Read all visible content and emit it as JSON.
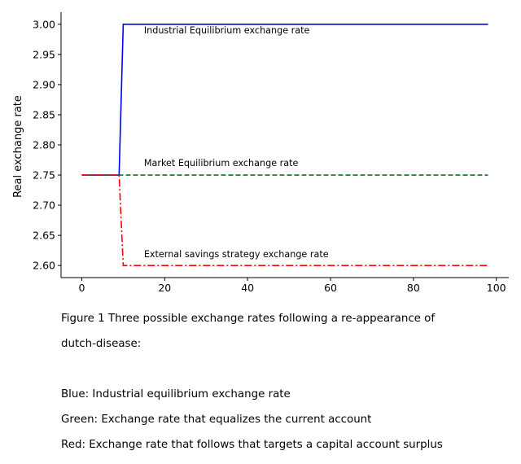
{
  "chart_data": {
    "type": "line",
    "title": "",
    "xlabel": "",
    "ylabel": "Real exchange rate",
    "xlim": [
      -5,
      103
    ],
    "ylim": [
      2.58,
      3.02
    ],
    "xticks": [
      0,
      20,
      40,
      60,
      80,
      100
    ],
    "yticks": [
      2.6,
      2.65,
      2.7,
      2.75,
      2.8,
      2.85,
      2.9,
      2.95,
      3.0
    ],
    "grid": false,
    "legend": "none",
    "series": [
      {
        "color": "#0000ff",
        "style": "solid",
        "x": [
          0,
          9,
          10,
          98
        ],
        "y": [
          2.75,
          2.75,
          3.0,
          3.0
        ]
      },
      {
        "color": "#008000",
        "style": "dashed",
        "x": [
          0,
          98
        ],
        "y": [
          2.75,
          2.75
        ]
      },
      {
        "color": "#ff0000",
        "style": "dashdot",
        "x": [
          0,
          9,
          10,
          98
        ],
        "y": [
          2.75,
          2.75,
          2.6,
          2.6
        ]
      }
    ],
    "annotations": [
      {
        "text": "Industrial Equilibrium exchange rate",
        "x": 15,
        "y": 2.985
      },
      {
        "text": "Market Equilibrium exchange rate",
        "x": 15,
        "y": 2.765
      },
      {
        "text": "External savings strategy exchange rate",
        "x": 15,
        "y": 2.614
      }
    ]
  },
  "caption": {
    "line1": "Figure 1  Three possible exchange rates following a re-appearance of",
    "line2": "dutch-disease:",
    "line3": "Blue: Industrial equilibrium exchange rate",
    "line4": "Green: Exchange rate that equalizes the current account",
    "line5": "Red: Exchange rate that follows that targets a capital account surplus"
  }
}
